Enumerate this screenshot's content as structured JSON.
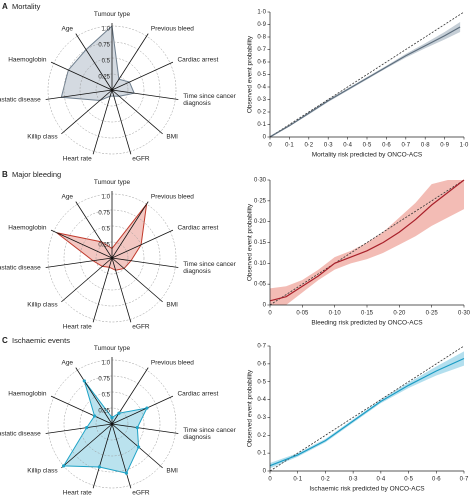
{
  "chart_data": [
    {
      "type": "radar",
      "panel": "A",
      "title": "Mortality",
      "axes": [
        "Tumour type",
        "Previous bleed",
        "Cardiac arrest",
        "Time since cancer diagnosis",
        "BMI",
        "eGFR",
        "Heart rate",
        "Killip class",
        "Metastatic disease",
        "Haemoglobin",
        "Age"
      ],
      "values": [
        1.0,
        0.2,
        0.3,
        0.35,
        0.15,
        0.1,
        0.1,
        0.25,
        0.8,
        0.75,
        0.75
      ],
      "color": "#6f7f8e",
      "fill": "#c9d1d9",
      "rlim": [
        0,
        1
      ],
      "rticks": [
        0.25,
        0.5,
        0.75,
        {
          "value": 1,
          "label": "1.0"
        }
      ],
      "grid": true,
      "markers": false
    },
    {
      "type": "line",
      "xlabel": "Mortality risk predicted by ONCO-ACS",
      "ylabel": "Observed event probability",
      "x": [
        0,
        0.1,
        0.2,
        0.3,
        0.4,
        0.5,
        0.6,
        0.7,
        0.8,
        0.9,
        0.98
      ],
      "values": [
        0.0,
        0.09,
        0.19,
        0.29,
        0.38,
        0.47,
        0.56,
        0.65,
        0.73,
        0.81,
        0.88
      ],
      "lower": [
        0.0,
        0.085,
        0.18,
        0.28,
        0.37,
        0.46,
        0.55,
        0.635,
        0.71,
        0.78,
        0.84
      ],
      "upper": [
        0.01,
        0.095,
        0.2,
        0.3,
        0.39,
        0.48,
        0.57,
        0.665,
        0.75,
        0.84,
        0.92
      ],
      "color": "#5d6d7c",
      "band_color": "#c5ced6",
      "diagonal": true,
      "xlim": [
        0,
        1
      ],
      "ylim": [
        0,
        1
      ],
      "xticks": [
        0,
        {
          "value": 0.1,
          "label": "0·1"
        },
        {
          "value": 0.2,
          "label": "0·2"
        },
        {
          "value": 0.3,
          "label": "0·3"
        },
        {
          "value": 0.4,
          "label": "0·4"
        },
        {
          "value": 0.5,
          "label": "0·5"
        },
        {
          "value": 0.6,
          "label": "0·6"
        },
        {
          "value": 0.7,
          "label": "0·7"
        },
        {
          "value": 0.8,
          "label": "0·8"
        },
        {
          "value": 0.9,
          "label": "0·9"
        },
        {
          "value": 1,
          "label": "1·0"
        }
      ],
      "yticks": [
        0,
        {
          "value": 0.1,
          "label": "0·1"
        },
        {
          "value": 0.2,
          "label": "0·2"
        },
        {
          "value": 0.3,
          "label": "0·3"
        },
        {
          "value": 0.4,
          "label": "0·4"
        },
        {
          "value": 0.5,
          "label": "0·5"
        },
        {
          "value": 0.6,
          "label": "0·6"
        },
        {
          "value": 0.7,
          "label": "0·7"
        },
        {
          "value": 0.8,
          "label": "0·8"
        },
        {
          "value": 0.9,
          "label": "0·9"
        },
        {
          "value": 1,
          "label": "1·0"
        }
      ]
    },
    {
      "type": "radar",
      "panel": "B",
      "title": "Major bleeding",
      "axes": [
        "Tumour type",
        "Previous bleed",
        "Cardiac arrest",
        "Time since cancer diagnosis",
        "BMI",
        "eGFR",
        "Heart rate",
        "Killip class",
        "Metastatic disease",
        "Haemoglobin",
        "Age"
      ],
      "values": [
        0.15,
        1.0,
        0.5,
        0.3,
        0.25,
        0.2,
        0.15,
        0.2,
        0.3,
        0.95,
        0.3
      ],
      "color": "#c0392b",
      "fill": "#f0b9b3",
      "rlim": [
        0,
        1
      ],
      "rticks": [
        0.25,
        0.5,
        0.75,
        {
          "value": 1,
          "label": "1.0"
        }
      ],
      "grid": true,
      "markers": false
    },
    {
      "type": "line",
      "xlabel": "Bleeding risk predicted by ONCO-ACS",
      "ylabel": "Observed event probability",
      "x": [
        0,
        0.025,
        0.05,
        0.075,
        0.1,
        0.125,
        0.15,
        0.175,
        0.2,
        0.225,
        0.25,
        0.275,
        0.3
      ],
      "values": [
        0.01,
        0.02,
        0.045,
        0.07,
        0.1,
        0.115,
        0.13,
        0.15,
        0.175,
        0.205,
        0.24,
        0.27,
        0.3
      ],
      "lower": [
        0,
        0,
        0.03,
        0.06,
        0.085,
        0.1,
        0.11,
        0.125,
        0.145,
        0.165,
        0.19,
        0.21,
        0.23
      ],
      "upper": [
        0.04,
        0.045,
        0.06,
        0.085,
        0.115,
        0.13,
        0.15,
        0.175,
        0.21,
        0.245,
        0.29,
        0.3,
        0.3
      ],
      "color": "#a8202a",
      "band_color": "#f3bcb5",
      "diagonal": true,
      "xlim": [
        0,
        0.3
      ],
      "ylim": [
        0,
        0.3
      ],
      "xticks": [
        0,
        {
          "value": 0.05,
          "label": "0·05"
        },
        {
          "value": 0.1,
          "label": "0·10"
        },
        {
          "value": 0.15,
          "label": "0·15"
        },
        {
          "value": 0.2,
          "label": "0·20"
        },
        {
          "value": 0.25,
          "label": "0·25"
        },
        {
          "value": 0.3,
          "label": "0·30"
        }
      ],
      "yticks": [
        0,
        {
          "value": 0.05,
          "label": "0·05"
        },
        {
          "value": 0.1,
          "label": "0·10"
        },
        {
          "value": 0.15,
          "label": "0·15"
        },
        {
          "value": 0.2,
          "label": "0·20"
        },
        {
          "value": 0.25,
          "label": "0·25"
        },
        {
          "value": 0.3,
          "label": "0·30"
        }
      ]
    },
    {
      "type": "radar",
      "panel": "C",
      "title": "Ischaemic events",
      "axes": [
        "Tumour type",
        "Previous bleed",
        "Cardiac arrest",
        "Time since cancer diagnosis",
        "BMI",
        "eGFR",
        "Heart rate",
        "Killip class",
        "Metastatic disease",
        "Haemoglobin",
        "Age"
      ],
      "values": [
        0.1,
        0.2,
        0.6,
        0.4,
        0.55,
        0.8,
        0.7,
        1.0,
        0.4,
        0.3,
        0.8
      ],
      "color": "#1fa3c6",
      "fill": "#a9dbea",
      "rlim": [
        0,
        1
      ],
      "rticks": [
        0.25,
        0.5,
        0.75,
        {
          "value": 1,
          "label": "1.0"
        }
      ],
      "grid": true,
      "markers": true
    },
    {
      "type": "line",
      "xlabel": "Ischaemic risk predicted by ONCO-ACS",
      "ylabel": "Observed event probability",
      "x": [
        0,
        0.1,
        0.2,
        0.3,
        0.4,
        0.5,
        0.6,
        0.7
      ],
      "values": [
        0.03,
        0.09,
        0.17,
        0.28,
        0.39,
        0.48,
        0.56,
        0.63
      ],
      "lower": [
        0.015,
        0.08,
        0.16,
        0.27,
        0.38,
        0.465,
        0.535,
        0.59
      ],
      "upper": [
        0.045,
        0.1,
        0.18,
        0.29,
        0.4,
        0.495,
        0.585,
        0.67
      ],
      "color": "#1a9cc4",
      "band_color": "#b3dfee",
      "diagonal": true,
      "xlim": [
        0,
        0.7
      ],
      "ylim": [
        0,
        0.7
      ],
      "xticks": [
        0,
        {
          "value": 0.1,
          "label": "0·1"
        },
        {
          "value": 0.2,
          "label": "0·2"
        },
        {
          "value": 0.3,
          "label": "0·3"
        },
        {
          "value": 0.4,
          "label": "0·4"
        },
        {
          "value": 0.5,
          "label": "0·5"
        },
        {
          "value": 0.6,
          "label": "0·6"
        },
        {
          "value": 0.7,
          "label": "0·7"
        }
      ],
      "yticks": [
        0,
        {
          "value": 0.1,
          "label": "0·1"
        },
        {
          "value": 0.2,
          "label": "0·2"
        },
        {
          "value": 0.3,
          "label": "0·3"
        },
        {
          "value": 0.4,
          "label": "0·4"
        },
        {
          "value": 0.5,
          "label": "0·5"
        },
        {
          "value": 0.6,
          "label": "0·6"
        },
        {
          "value": 0.7,
          "label": "0·7"
        }
      ]
    }
  ]
}
